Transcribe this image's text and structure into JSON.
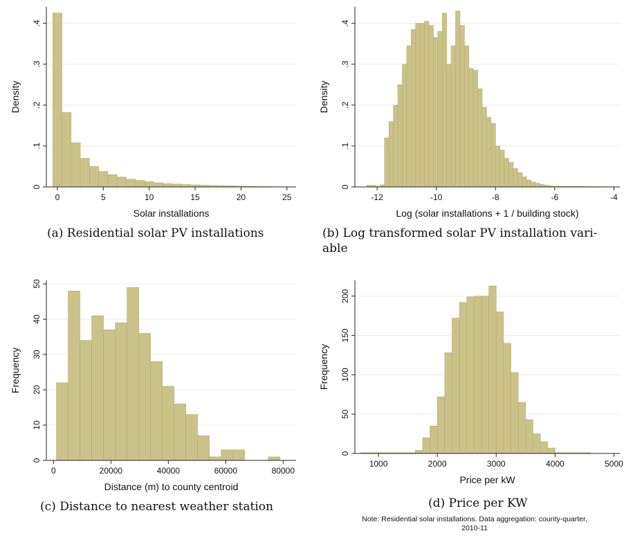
{
  "chart_data": [
    {
      "id": "a",
      "type": "bar",
      "ylabel": "Density",
      "xlabel": "Solar installations",
      "xlim": [
        -1.2,
        26
      ],
      "ylim": [
        0,
        0.44
      ],
      "xticks": [
        0,
        5,
        10,
        15,
        20,
        25
      ],
      "xtick_labels": [
        "0",
        "5",
        "10",
        "15",
        "20",
        "25"
      ],
      "yticks": [
        0,
        0.1,
        0.2,
        0.3,
        0.4
      ],
      "ytick_labels": [
        "0",
        ".1",
        ".2",
        ".3",
        ".4"
      ],
      "grid": true,
      "bin_start": -0.5,
      "bin_width": 1.0,
      "values": [
        0.425,
        0.182,
        0.108,
        0.07,
        0.05,
        0.038,
        0.03,
        0.024,
        0.019,
        0.016,
        0.013,
        0.01,
        0.008,
        0.007,
        0.006,
        0.005,
        0.004,
        0.0035,
        0.003,
        0.0025,
        0.002,
        0.0015,
        0.001,
        0.0008,
        0.0005,
        0.0003
      ],
      "caption": "(a) Residential solar PV installations"
    },
    {
      "id": "b",
      "type": "bar",
      "ylabel": "Density",
      "xlabel": "Log (solar installations + 1 / building stock)",
      "xlim": [
        -12.75,
        -3.8
      ],
      "ylim": [
        0,
        0.44
      ],
      "xticks": [
        -12,
        -10,
        -8,
        -6,
        -4
      ],
      "xtick_labels": [
        "-12",
        "-10",
        "-8",
        "-6",
        "-4"
      ],
      "yticks": [
        0,
        0.1,
        0.2,
        0.3,
        0.4
      ],
      "ytick_labels": [
        "0",
        ".1",
        ".2",
        ".3",
        ".4"
      ],
      "grid": true,
      "bin_start": -11.75,
      "bin_width": 0.15,
      "values": [
        0.12,
        0.16,
        0.2,
        0.25,
        0.3,
        0.345,
        0.385,
        0.4,
        0.4,
        0.405,
        0.395,
        0.365,
        0.38,
        0.425,
        0.3,
        0.345,
        0.43,
        0.395,
        0.345,
        0.29,
        0.285,
        0.24,
        0.195,
        0.17,
        0.155,
        0.1,
        0.09,
        0.07,
        0.06,
        0.045,
        0.035,
        0.025,
        0.017,
        0.012,
        0.009,
        0.006,
        0.004,
        0.0025
      ],
      "extra_bins": [
        {
          "x0": -12.35,
          "x1": -12.05,
          "value": 0.004
        },
        {
          "x0": -12.05,
          "x1": -11.9,
          "value": 0.002
        },
        {
          "x0": -11.9,
          "x1": -11.75,
          "value": 0.005
        },
        {
          "x0": -6.05,
          "x1": -5.0,
          "value": 0.0015
        },
        {
          "x0": -5.0,
          "x1": -4.25,
          "value": 0.0008
        }
      ],
      "caption": "(b) Log transformed solar PV installation variable"
    },
    {
      "id": "c",
      "type": "bar",
      "ylabel": "Frequency",
      "xlabel": "Distance (m) to county centroid",
      "xlim": [
        -2500,
        84500
      ],
      "ylim": [
        0,
        51
      ],
      "xticks": [
        0,
        20000,
        40000,
        60000,
        80000
      ],
      "xtick_labels": [
        "0",
        "20000",
        "40000",
        "60000",
        "80000"
      ],
      "yticks": [
        0,
        10,
        20,
        30,
        40,
        50
      ],
      "ytick_labels": [
        "0",
        "10",
        "20",
        "30",
        "40",
        "50"
      ],
      "grid": true,
      "bin_start": 1000,
      "bin_width": 4100,
      "values": [
        22,
        48,
        34,
        41,
        37,
        39,
        49,
        36,
        28,
        21,
        16,
        13,
        7,
        1,
        3,
        3,
        0,
        0,
        1
      ],
      "caption": "(c) Distance to nearest weather station"
    },
    {
      "id": "d",
      "type": "bar",
      "ylabel": "Frequency",
      "xlabel": "Price per kW",
      "xlim": [
        600,
        5100
      ],
      "ylim": [
        0,
        220
      ],
      "xticks": [
        1000,
        2000,
        3000,
        4000,
        5000
      ],
      "xtick_labels": [
        "1000",
        "2000",
        "3000",
        "4000",
        "5000"
      ],
      "yticks": [
        0,
        50,
        100,
        150,
        200
      ],
      "ytick_labels": [
        "0",
        "50",
        "100",
        "150",
        "200"
      ],
      "grid": true,
      "bin_start": 1625,
      "bin_width": 125,
      "values": [
        4,
        20,
        35,
        72,
        128,
        172,
        192,
        199,
        200,
        200,
        213,
        180,
        140,
        103,
        65,
        43,
        25,
        15,
        7
      ],
      "extra_bins": [
        {
          "x0": 700,
          "x1": 1625,
          "value": 1
        },
        {
          "x0": 3999,
          "x1": 4600,
          "value": 1
        }
      ],
      "caption": "(d) Price per KW"
    }
  ],
  "captions": {
    "a": "(a) Residential solar PV installations",
    "b_line1": "(b) Log transformed solar PV installation vari-",
    "b_line2": "able",
    "c": "(c) Distance to nearest weather station",
    "d": "(d) Price per KW"
  },
  "note": {
    "line1": "Note: Residential solar installations. Data aggregation: county-quarter,",
    "line2": "2010-11"
  },
  "colors": {
    "bar_fill": "#cbc28a",
    "bar_stroke": "#b7ad6f",
    "grid": "#ececec",
    "axis": "#222222"
  }
}
